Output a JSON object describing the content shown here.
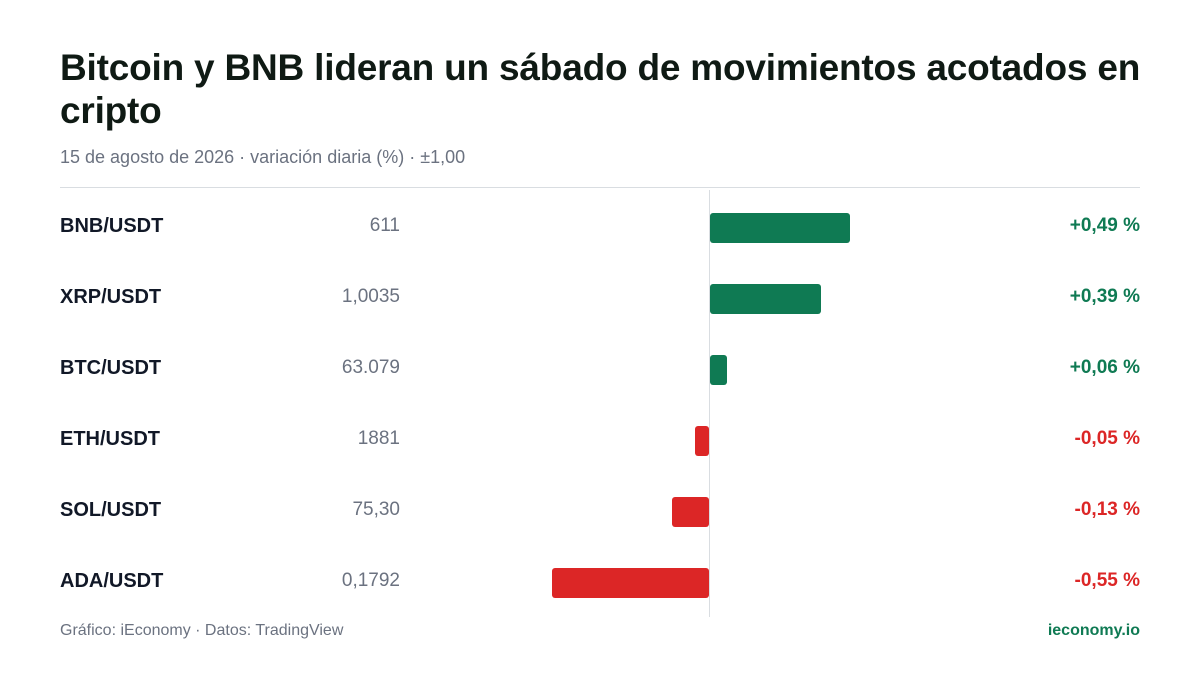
{
  "header": {
    "title": "Bitcoin y BNB lideran un sábado de movimientos acotados en cripto",
    "subtitle": "15 de agosto de 2026 · variación diaria (%) · ±1,00"
  },
  "footer": {
    "source": "Gráfico: iEconomy · Datos: TradingView",
    "brand": "ieconomy.io"
  },
  "colors": {
    "positive": "#0f7a53",
    "negative": "#dc2626"
  },
  "chart_data": {
    "type": "bar",
    "orientation": "horizontal",
    "title": "Bitcoin y BNB lideran un sábado de movimientos acotados en cripto",
    "subtitle": "15 de agosto de 2026 · variación diaria (%) · ±1,00",
    "xlim": [
      -1.0,
      1.0
    ],
    "grid": false,
    "rows": [
      {
        "pair": "BNB/USDT",
        "price": "611",
        "value": 0.49,
        "label": "+0,49 %"
      },
      {
        "pair": "XRP/USDT",
        "price": "1,0035",
        "value": 0.39,
        "label": "+0,39 %"
      },
      {
        "pair": "BTC/USDT",
        "price": "63.079",
        "value": 0.06,
        "label": "+0,06 %"
      },
      {
        "pair": "ETH/USDT",
        "price": "1881",
        "value": -0.05,
        "label": "-0,05 %"
      },
      {
        "pair": "SOL/USDT",
        "price": "75,30",
        "value": -0.13,
        "label": "-0,13 %"
      },
      {
        "pair": "ADA/USDT",
        "price": "0,1792",
        "value": -0.55,
        "label": "-0,55 %"
      }
    ]
  }
}
